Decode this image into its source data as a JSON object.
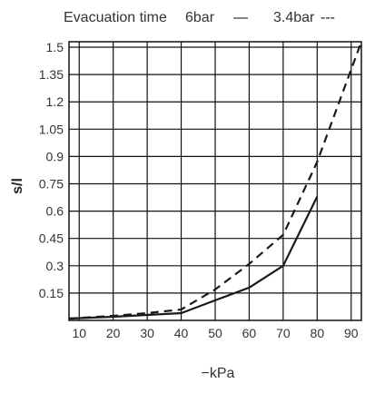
{
  "chart_data": {
    "type": "line",
    "title": "Evacuation time",
    "xlabel": "−kPa",
    "ylabel": "s/l",
    "x_ticks": [
      10,
      20,
      30,
      40,
      50,
      60,
      70,
      80,
      90
    ],
    "y_ticks": [
      0.15,
      0.3,
      0.45,
      0.6,
      0.75,
      0.9,
      1.05,
      1.2,
      1.35,
      1.5
    ],
    "y_tick_labels": [
      "0.15",
      "0.3",
      "0.45",
      "0.6",
      "0.75",
      "0.9",
      "1.05",
      "1.2",
      "1.35",
      "1.5"
    ],
    "xlim": [
      7,
      93
    ],
    "ylim": [
      0,
      1.53
    ],
    "grid": true,
    "legend_position": "top",
    "series": [
      {
        "name": "6bar",
        "legend_label": "6bar",
        "legend_marker": "—",
        "line_style": "solid",
        "color": "#1a1a1a",
        "x": [
          7,
          20,
          30,
          40,
          50,
          60,
          70,
          80
        ],
        "y": [
          0.01,
          0.02,
          0.03,
          0.04,
          0.11,
          0.18,
          0.3,
          0.68
        ]
      },
      {
        "name": "3.4bar",
        "legend_label": "3.4bar",
        "legend_marker": "---",
        "line_style": "dashed",
        "color": "#1a1a1a",
        "x": [
          7,
          20,
          30,
          40,
          50,
          60,
          70,
          80,
          93
        ],
        "y": [
          0.01,
          0.025,
          0.04,
          0.06,
          0.17,
          0.31,
          0.47,
          0.87,
          1.53
        ]
      }
    ]
  }
}
